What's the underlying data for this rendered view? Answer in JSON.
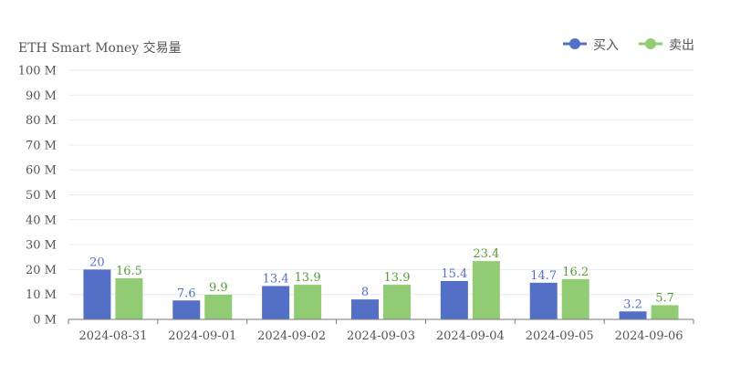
{
  "chart_data": {
    "type": "bar",
    "title": "ETH Smart Money 交易量",
    "categories": [
      "2024-08-31",
      "2024-09-01",
      "2024-09-02",
      "2024-09-03",
      "2024-09-04",
      "2024-09-05",
      "2024-09-06"
    ],
    "series": [
      {
        "name": "买入",
        "values": [
          20,
          7.6,
          13.4,
          8,
          15.4,
          14.7,
          3.2
        ],
        "color": "#5470c6",
        "label_color": "#5470c6"
      },
      {
        "name": "卖出",
        "values": [
          16.5,
          9.9,
          13.9,
          13.9,
          23.4,
          16.2,
          5.7
        ],
        "color": "#91cc75",
        "label_color": "#5a9a3a"
      }
    ],
    "ylim": [
      0,
      100
    ],
    "yticks": [
      0,
      10,
      20,
      30,
      40,
      50,
      60,
      70,
      80,
      90,
      100
    ],
    "ytick_suffix": " M",
    "xlabel": "",
    "ylabel": "",
    "grid": true,
    "legend_position": "top-right"
  }
}
